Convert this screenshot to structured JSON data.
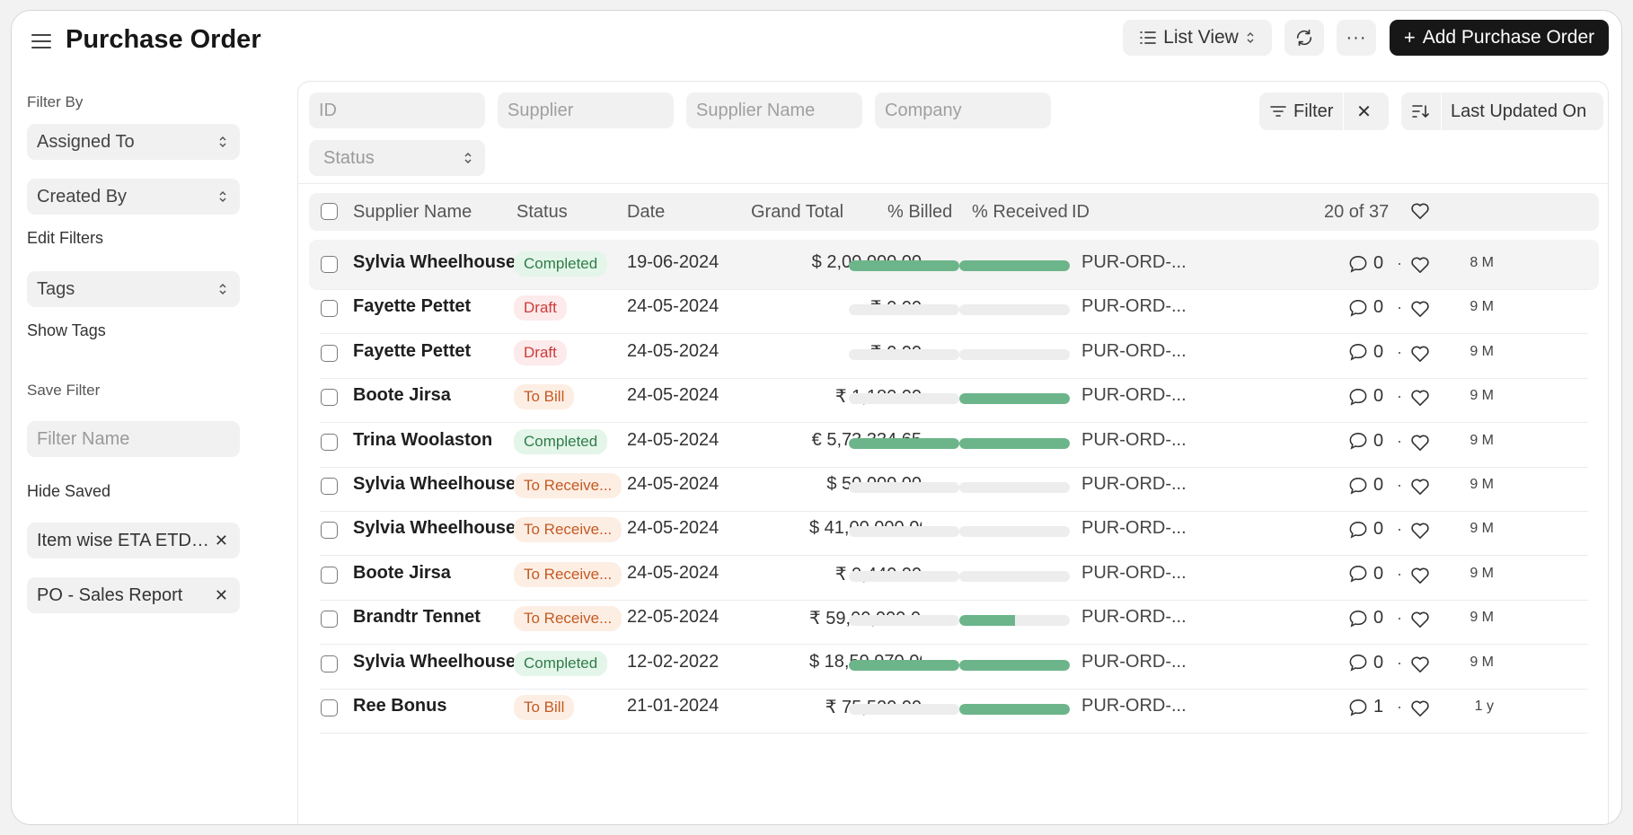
{
  "header": {
    "title": "Purchase Order",
    "list_view_label": "List View",
    "add_button_label": "Add Purchase Order",
    "more_label": "···"
  },
  "sidebar": {
    "filter_by_label": "Filter By",
    "assigned_to": "Assigned To",
    "created_by": "Created By",
    "edit_filters": "Edit Filters",
    "tags": "Tags",
    "show_tags": "Show Tags",
    "save_filter_label": "Save Filter",
    "filter_name_placeholder": "Filter Name",
    "hide_saved": "Hide Saved",
    "saved_filters": [
      "Item wise ETA ETD Report",
      "PO - Sales Report"
    ]
  },
  "filters": {
    "id_placeholder": "ID",
    "supplier_placeholder": "Supplier",
    "supplier_name_placeholder": "Supplier Name",
    "company_placeholder": "Company",
    "status_placeholder": "Status",
    "filter_label": "Filter",
    "sort_label": "Last Updated On"
  },
  "table": {
    "columns": {
      "supplier_name": "Supplier Name",
      "status": "Status",
      "date": "Date",
      "grand_total": "Grand Total",
      "billed": "% Billed",
      "received": "% Received",
      "id": "ID"
    },
    "count_label": "20 of 37",
    "rows": [
      {
        "supplier": "Sylvia Wheelhouse",
        "status": "Completed",
        "status_kind": "green",
        "date": "19-06-2024",
        "total": "$ 2,00,000.00",
        "billed": 100,
        "received": 100,
        "id": "PUR-ORD-...",
        "age": "8 M",
        "comments": "0"
      },
      {
        "supplier": "Fayette Pettet",
        "status": "Draft",
        "status_kind": "red",
        "date": "24-05-2024",
        "total": "₹ 0.00",
        "billed": 0,
        "received": 0,
        "id": "PUR-ORD-...",
        "age": "9 M",
        "comments": "0"
      },
      {
        "supplier": "Fayette Pettet",
        "status": "Draft",
        "status_kind": "red",
        "date": "24-05-2024",
        "total": "₹ 0.00",
        "billed": 0,
        "received": 0,
        "id": "PUR-ORD-...",
        "age": "9 M",
        "comments": "0"
      },
      {
        "supplier": "Boote Jirsa",
        "status": "To Bill",
        "status_kind": "orange",
        "date": "24-05-2024",
        "total": "₹ 1,180.00",
        "billed": 0,
        "received": 100,
        "id": "PUR-ORD-...",
        "age": "9 M",
        "comments": "0"
      },
      {
        "supplier": "Trina Woolaston",
        "status": "Completed",
        "status_kind": "green",
        "date": "24-05-2024",
        "total": "€ 5,73,334.65",
        "billed": 100,
        "received": 100,
        "id": "PUR-ORD-...",
        "age": "9 M",
        "comments": "0"
      },
      {
        "supplier": "Sylvia Wheelhouse",
        "status": "To Receive and Bill",
        "status_kind": "orange",
        "date": "24-05-2024",
        "total": "$ 50,000.00",
        "billed": 0,
        "received": 0,
        "id": "PUR-ORD-...",
        "age": "9 M",
        "comments": "0"
      },
      {
        "supplier": "Sylvia Wheelhouse",
        "status": "To Receive and Bill",
        "status_kind": "orange",
        "date": "24-05-2024",
        "total": "$ 41,00,000.00",
        "billed": 0,
        "received": 0,
        "id": "PUR-ORD-...",
        "age": "9 M",
        "comments": "0"
      },
      {
        "supplier": "Boote Jirsa",
        "status": "To Receive and Bill",
        "status_kind": "orange",
        "date": "24-05-2024",
        "total": "₹ 9,440.00",
        "billed": 0,
        "received": 0,
        "id": "PUR-ORD-...",
        "age": "9 M",
        "comments": "0"
      },
      {
        "supplier": "Brandtr Tennet",
        "status": "To Receive and Bill",
        "status_kind": "orange",
        "date": "22-05-2024",
        "total": "₹ 59,00,000.00",
        "billed": 0,
        "received": 50,
        "id": "PUR-ORD-...",
        "age": "9 M",
        "comments": "0"
      },
      {
        "supplier": "Sylvia Wheelhouse",
        "status": "Completed",
        "status_kind": "green",
        "date": "12-02-2022",
        "total": "$ 18,59,970.00",
        "billed": 100,
        "received": 100,
        "id": "PUR-ORD-...",
        "age": "9 M",
        "comments": "0"
      },
      {
        "supplier": "Ree Bonus",
        "status": "To Bill",
        "status_kind": "orange",
        "date": "21-01-2024",
        "total": "₹ 75,520.00",
        "billed": 0,
        "received": 100,
        "id": "PUR-ORD-...",
        "age": "1 y",
        "comments": "1"
      }
    ]
  },
  "colors": {
    "green_bg": "#e4f5e9",
    "green_fg": "#2f7d4a",
    "red_bg": "#fdeaea",
    "red_fg": "#cc3b3b",
    "orange_bg": "#fdeee4",
    "orange_fg": "#c45a23",
    "progress": "#6cb58a"
  }
}
